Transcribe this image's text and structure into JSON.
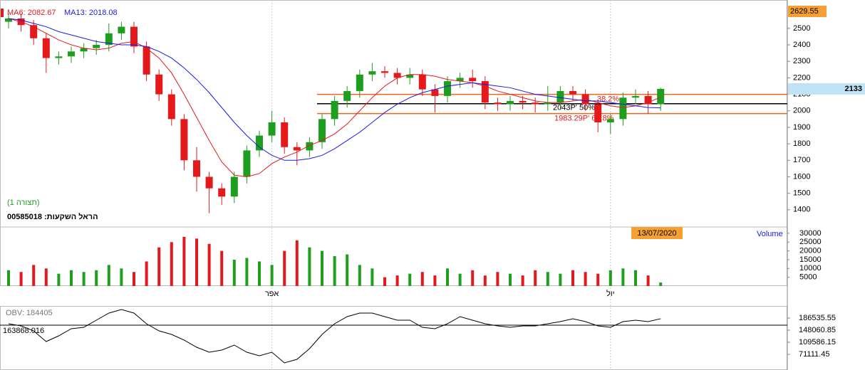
{
  "chart_data": [
    {
      "type": "candlestick",
      "categories": [
        null,
        null,
        null,
        null,
        null,
        null,
        null,
        null,
        null,
        null,
        null,
        null,
        null,
        null,
        null,
        null,
        null,
        null,
        null,
        null,
        null,
        "אפר",
        null,
        null,
        null,
        null,
        null,
        null,
        null,
        null,
        null,
        null,
        null,
        null,
        null,
        null,
        null,
        null,
        null,
        null,
        null,
        null,
        null,
        null,
        null,
        null,
        null,
        null,
        "יול",
        null,
        null,
        null,
        null
      ],
      "open": [
        2540,
        2560,
        2520,
        2440,
        2320,
        2330,
        2360,
        2380,
        2400,
        2470,
        2510,
        2390,
        2220,
        2100,
        1950,
        1700,
        1600,
        1530,
        1480,
        1600,
        1760,
        1850,
        1930,
        1780,
        1760,
        1810,
        1950,
        2060,
        2120,
        2220,
        2240,
        2230,
        2200,
        2220,
        2130,
        2090,
        2180,
        2200,
        2180,
        2050,
        2040,
        2060,
        2050,
        2040,
        2050,
        2120,
        2100,
        2040,
        1930,
        1950,
        2080,
        2090,
        2040
      ],
      "high": [
        2590,
        2590,
        2550,
        2470,
        2360,
        2390,
        2410,
        2430,
        2530,
        2540,
        2540,
        2420,
        2250,
        2130,
        1980,
        1780,
        1630,
        1560,
        1630,
        1790,
        1880,
        2000,
        1960,
        1810,
        1840,
        1980,
        2090,
        2150,
        2250,
        2290,
        2270,
        2260,
        2260,
        2250,
        2160,
        2210,
        2230,
        2250,
        2210,
        2080,
        2090,
        2090,
        2080,
        2150,
        2150,
        2150,
        2130,
        2070,
        1980,
        2110,
        2130,
        2120,
        2140
      ],
      "low": [
        2500,
        2480,
        2400,
        2230,
        2280,
        2290,
        2320,
        2340,
        2360,
        2430,
        2350,
        2180,
        2060,
        1910,
        1640,
        1510,
        1380,
        1430,
        1440,
        1560,
        1720,
        1810,
        1740,
        1670,
        1720,
        1770,
        1910,
        2020,
        2080,
        2180,
        2200,
        2160,
        2160,
        2090,
        1990,
        2050,
        2140,
        2140,
        2010,
        2000,
        2000,
        2010,
        1990,
        2000,
        2010,
        2060,
        2000,
        1870,
        1860,
        1910,
        2040,
        1980,
        2000
      ],
      "close": [
        2560,
        2520,
        2440,
        2320,
        2330,
        2360,
        2380,
        2400,
        2470,
        2510,
        2390,
        2220,
        2100,
        1950,
        1700,
        1600,
        1530,
        1480,
        1600,
        1760,
        1850,
        1930,
        1780,
        1760,
        1810,
        1950,
        2060,
        2120,
        2220,
        2240,
        2230,
        2200,
        2220,
        2130,
        2090,
        2180,
        2200,
        2180,
        2050,
        2040,
        2060,
        2050,
        2040,
        2050,
        2120,
        2100,
        2040,
        1930,
        1950,
        2080,
        2090,
        2040,
        2133
      ],
      "up_color": "#1e9e1e",
      "down_color": "#e3191c",
      "series": [
        {
          "name": "MA6: 2082.67",
          "color": "#e3191c",
          "values": [
            2560,
            2540,
            2510,
            2470,
            2430,
            2400,
            2380,
            2370,
            2380,
            2410,
            2420,
            2380,
            2320,
            2230,
            2100,
            1960,
            1820,
            1690,
            1610,
            1600,
            1620,
            1680,
            1720,
            1750,
            1790,
            1820,
            1860,
            1920,
            2000,
            2080,
            2150,
            2200,
            2220,
            2220,
            2210,
            2190,
            2180,
            2170,
            2150,
            2120,
            2100,
            2080,
            2060,
            2050,
            2050,
            2060,
            2070,
            2050,
            2030,
            2020,
            2030,
            2050,
            2082.67
          ]
        },
        {
          "name": "MA13: 2018.08",
          "color": "#1a1ae6",
          "values": [
            2560,
            2550,
            2530,
            2510,
            2480,
            2460,
            2440,
            2420,
            2410,
            2400,
            2400,
            2390,
            2360,
            2320,
            2260,
            2190,
            2110,
            2020,
            1930,
            1850,
            1780,
            1730,
            1700,
            1700,
            1710,
            1730,
            1770,
            1820,
            1870,
            1930,
            1990,
            2040,
            2080,
            2110,
            2130,
            2150,
            2160,
            2170,
            2160,
            2150,
            2140,
            2120,
            2100,
            2090,
            2080,
            2070,
            2060,
            2060,
            2050,
            2040,
            2030,
            2020,
            2018.08
          ]
        }
      ],
      "levels": [
        {
          "value": 2100,
          "label": "38.2%",
          "color": "#e8651c"
        },
        {
          "value": 2043,
          "label": "2043P' 50%",
          "color": "#000000"
        },
        {
          "value": 1983.29,
          "label": "1983.29P' 61.8%",
          "color": "#e8651c"
        }
      ],
      "ylim": [
        1300,
        2672
      ],
      "yticks": [
        1400,
        1500,
        1600,
        1700,
        1800,
        1900,
        2000,
        2100,
        2200,
        2300,
        2400,
        2500
      ],
      "last_price": 2133,
      "max_label": 2629.55,
      "date_label": "13/07/2020",
      "pattern_label": "(תצורה 1)",
      "instrument": "00585018  :הראל השקעות"
    },
    {
      "type": "bar",
      "title": "Volume",
      "values": [
        9000,
        8000,
        12000,
        10000,
        7000,
        9000,
        8000,
        9000,
        12000,
        10000,
        8000,
        14000,
        22000,
        25000,
        28000,
        27000,
        24000,
        20000,
        15000,
        16000,
        14000,
        12000,
        20000,
        26000,
        22000,
        20000,
        17000,
        18000,
        12000,
        10000,
        5000,
        6000,
        7000,
        8000,
        6000,
        10000,
        7000,
        9000,
        6000,
        8000,
        7000,
        6000,
        9000,
        8000,
        7000,
        9000,
        8000,
        7000,
        9000,
        10000,
        9000,
        6000,
        2000
      ],
      "ylim": [
        0,
        33200
      ],
      "yticks": [
        5000,
        10000,
        15000,
        20000,
        25000,
        30000
      ]
    },
    {
      "type": "line",
      "series": [
        {
          "name": "OBV: 184405",
          "color": "#000000",
          "values": [
            168430,
            161640,
            145798,
            111850,
            129955,
            152587,
            157114,
            179746,
            202378,
            213694,
            202378,
            168430,
            145798,
            134481,
            116376,
            93744,
            77902,
            84692,
            100534,
            77902,
            66586,
            77902,
            43954,
            55270,
            89218,
            134481,
            168430,
            191062,
            202378,
            202378,
            191062,
            179746,
            179746,
            157114,
            152587,
            168430,
            191062,
            179746,
            168430,
            161640,
            157114,
            161640,
            161640,
            168430,
            175220,
            184272,
            175220,
            161640,
            157114,
            175220,
            179746,
            175220,
            184405
          ]
        }
      ],
      "reference": 163868.016,
      "ylim": [
        21320,
        225010
      ],
      "yticks": [
        71111.45,
        109586.15,
        148060.85,
        186535.55
      ]
    }
  ]
}
